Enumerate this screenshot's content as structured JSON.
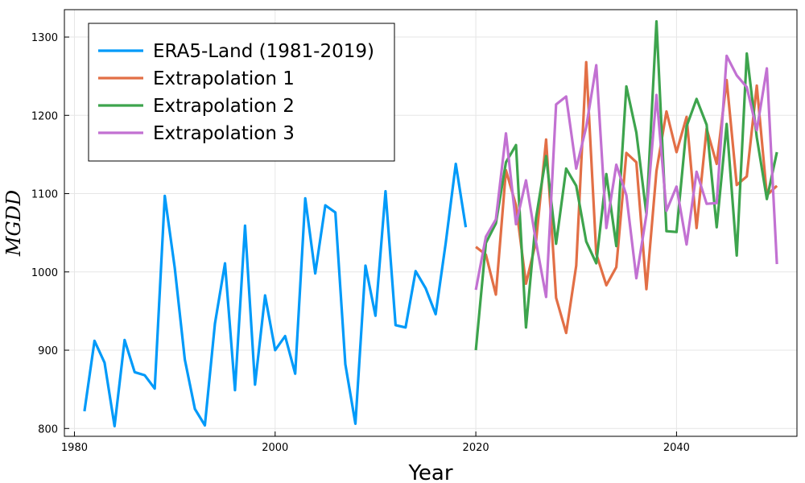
{
  "chart_data": {
    "type": "line",
    "xlabel": "Year",
    "ylabel": "MGDD",
    "xlim": [
      1979,
      2052
    ],
    "ylim": [
      790,
      1335
    ],
    "xticks": [
      1980,
      2000,
      2020,
      2040
    ],
    "yticks": [
      800,
      900,
      1000,
      1100,
      1200,
      1300
    ],
    "grid": true,
    "legend_position": "top-left",
    "series": [
      {
        "name": "ERA5-Land (1981-2019)",
        "color": "#009af9",
        "x": [
          1981,
          1982,
          1983,
          1984,
          1985,
          1986,
          1987,
          1988,
          1989,
          1990,
          1991,
          1992,
          1993,
          1994,
          1995,
          1996,
          1997,
          1998,
          1999,
          2000,
          2001,
          2002,
          2003,
          2004,
          2005,
          2006,
          2007,
          2008,
          2009,
          2010,
          2011,
          2012,
          2013,
          2014,
          2015,
          2016,
          2017,
          2018,
          2019
        ],
        "y": [
          822,
          912,
          884,
          803,
          913,
          872,
          868,
          851,
          1097,
          1005,
          888,
          825,
          804,
          934,
          1011,
          849,
          1059,
          856,
          970,
          900,
          918,
          870,
          1094,
          998,
          1085,
          1076,
          882,
          806,
          1008,
          944,
          1103,
          932,
          929,
          1001,
          979,
          946,
          1037,
          1138,
          1057
        ]
      },
      {
        "name": "Extrapolation 1",
        "color": "#e26f46",
        "x": [
          2020,
          2021,
          2022,
          2023,
          2024,
          2025,
          2026,
          2027,
          2028,
          2029,
          2030,
          2031,
          2032,
          2033,
          2034,
          2035,
          2036,
          2037,
          2038,
          2039,
          2040,
          2041,
          2042,
          2043,
          2044,
          2045,
          2046,
          2047,
          2048,
          2049,
          2050
        ],
        "y": [
          1032,
          1022,
          971,
          1130,
          1085,
          985,
          1039,
          1169,
          967,
          922,
          1008,
          1268,
          1023,
          983,
          1006,
          1152,
          1140,
          978,
          1129,
          1205,
          1153,
          1198,
          1056,
          1183,
          1138,
          1245,
          1111,
          1122,
          1238,
          1098,
          1110
        ]
      },
      {
        "name": "Extrapolation 2",
        "color": "#3da44d",
        "x": [
          2020,
          2021,
          2022,
          2023,
          2024,
          2025,
          2026,
          2027,
          2028,
          2029,
          2030,
          2031,
          2032,
          2033,
          2034,
          2035,
          2036,
          2037,
          2038,
          2039,
          2040,
          2041,
          2042,
          2043,
          2044,
          2045,
          2046,
          2047,
          2048,
          2049,
          2050
        ],
        "y": [
          900,
          1037,
          1062,
          1140,
          1162,
          929,
          1069,
          1148,
          1036,
          1132,
          1110,
          1039,
          1011,
          1125,
          1033,
          1237,
          1178,
          1074,
          1320,
          1052,
          1051,
          1186,
          1221,
          1188,
          1057,
          1189,
          1021,
          1279,
          1172,
          1093,
          1153
        ]
      },
      {
        "name": "Extrapolation 3",
        "color": "#c271d2",
        "x": [
          2020,
          2021,
          2022,
          2023,
          2024,
          2025,
          2026,
          2027,
          2028,
          2029,
          2030,
          2031,
          2032,
          2033,
          2034,
          2035,
          2036,
          2037,
          2038,
          2039,
          2040,
          2041,
          2042,
          2043,
          2044,
          2045,
          2046,
          2047,
          2048,
          2049,
          2050
        ],
        "y": [
          977,
          1045,
          1067,
          1177,
          1061,
          1117,
          1038,
          968,
          1214,
          1224,
          1132,
          1185,
          1264,
          1056,
          1137,
          1098,
          992,
          1073,
          1226,
          1078,
          1109,
          1035,
          1128,
          1087,
          1088,
          1276,
          1251,
          1236,
          1181,
          1260,
          1010
        ]
      }
    ]
  }
}
